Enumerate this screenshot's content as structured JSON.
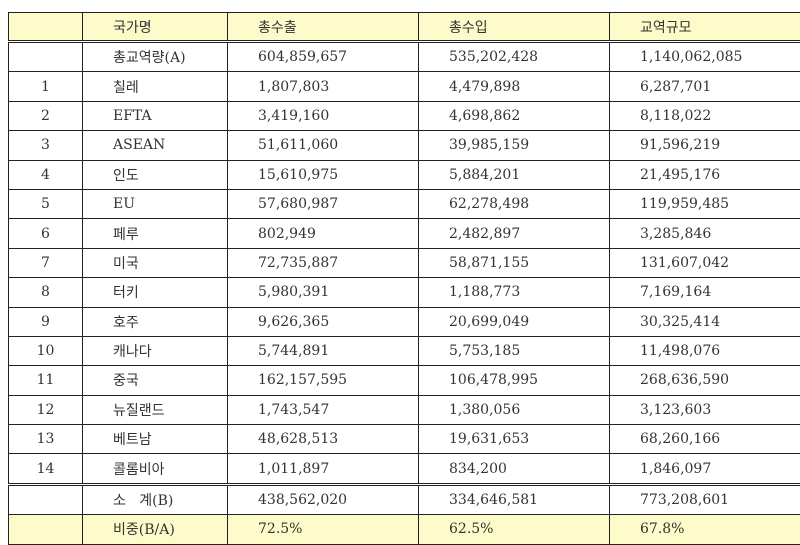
{
  "table": {
    "header": [
      "",
      "국가명",
      "총수출",
      "총수입",
      "교역규모"
    ],
    "total_row": {
      "no": "",
      "name": "총교역량(A)",
      "export": "604,859,657",
      "import": "535,202,428",
      "trade": "1,140,062,085"
    },
    "rows": [
      {
        "no": "1",
        "name": "칠레",
        "export": "1,807,803",
        "import": "4,479,898",
        "trade": "6,287,701"
      },
      {
        "no": "2",
        "name": "EFTA",
        "export": "3,419,160",
        "import": "4,698,862",
        "trade": "8,118,022"
      },
      {
        "no": "3",
        "name": "ASEAN",
        "export": "51,611,060",
        "import": "39,985,159",
        "trade": "91,596,219"
      },
      {
        "no": "4",
        "name": "인도",
        "export": "15,610,975",
        "import": "5,884,201",
        "trade": "21,495,176"
      },
      {
        "no": "5",
        "name": "EU",
        "export": "57,680,987",
        "import": "62,278,498",
        "trade": "119,959,485"
      },
      {
        "no": "6",
        "name": "페루",
        "export": "802,949",
        "import": "2,482,897",
        "trade": "3,285,846"
      },
      {
        "no": "7",
        "name": "미국",
        "export": "72,735,887",
        "import": "58,871,155",
        "trade": "131,607,042"
      },
      {
        "no": "8",
        "name": "터키",
        "export": "5,980,391",
        "import": "1,188,773",
        "trade": "7,169,164"
      },
      {
        "no": "9",
        "name": "호주",
        "export": "9,626,365",
        "import": "20,699,049",
        "trade": "30,325,414"
      },
      {
        "no": "10",
        "name": "캐나다",
        "export": "5,744,891",
        "import": "5,753,185",
        "trade": "11,498,076"
      },
      {
        "no": "11",
        "name": "중국",
        "export": "162,157,595",
        "import": "106,478,995",
        "trade": "268,636,590"
      },
      {
        "no": "12",
        "name": "뉴질랜드",
        "export": "1,743,547",
        "import": "1,380,056",
        "trade": "3,123,603"
      },
      {
        "no": "13",
        "name": "베트남",
        "export": "48,628,513",
        "import": "19,631,653",
        "trade": "68,260,166"
      },
      {
        "no": "14",
        "name": "콜롬비아",
        "export": "1,011,897",
        "import": "834,200",
        "trade": "1,846,097"
      }
    ],
    "subtotal_row": {
      "no": "",
      "name": "소   계(B)",
      "export": "438,562,020",
      "import": "334,646,581",
      "trade": "773,208,601"
    },
    "ratio_row": {
      "no": "",
      "name": "비중(B/A)",
      "export": "72.5%",
      "import": "62.5%",
      "trade": "67.8%"
    }
  },
  "colors": {
    "header_bg": "#fcfbc9",
    "ratio_bg": "#fcfbc9",
    "border": "#222222"
  }
}
